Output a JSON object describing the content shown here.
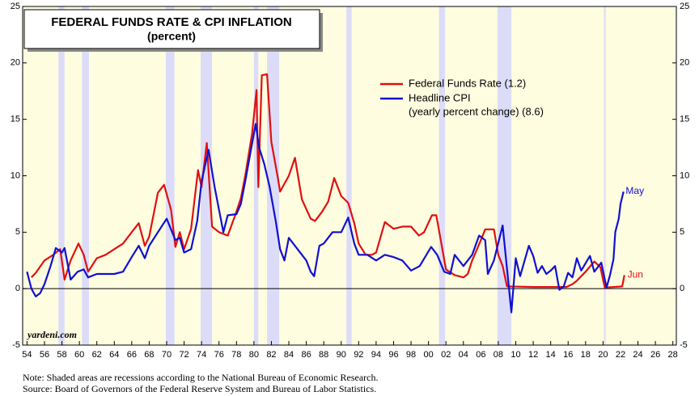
{
  "chart_data": {
    "type": "line",
    "title": "FEDERAL FUNDS RATE & CPI INFLATION",
    "subtitle": "(percent)",
    "xlim": [
      1953.5,
      2028.4
    ],
    "xticks": [
      {
        "value": 1954,
        "label": "54"
      },
      {
        "value": 1956,
        "label": "56"
      },
      {
        "value": 1958,
        "label": "58"
      },
      {
        "value": 1960,
        "label": "60"
      },
      {
        "value": 1962,
        "label": "62"
      },
      {
        "value": 1964,
        "label": "64"
      },
      {
        "value": 1966,
        "label": "66"
      },
      {
        "value": 1968,
        "label": "68"
      },
      {
        "value": 1970,
        "label": "70"
      },
      {
        "value": 1972,
        "label": "72"
      },
      {
        "value": 1974,
        "label": "74"
      },
      {
        "value": 1976,
        "label": "76"
      },
      {
        "value": 1978,
        "label": "78"
      },
      {
        "value": 1980,
        "label": "80"
      },
      {
        "value": 1982,
        "label": "82"
      },
      {
        "value": 1984,
        "label": "84"
      },
      {
        "value": 1986,
        "label": "86"
      },
      {
        "value": 1988,
        "label": "88"
      },
      {
        "value": 1990,
        "label": "90"
      },
      {
        "value": 1992,
        "label": "92"
      },
      {
        "value": 1994,
        "label": "94"
      },
      {
        "value": 1996,
        "label": "96"
      },
      {
        "value": 1998,
        "label": "98"
      },
      {
        "value": 2000,
        "label": "00"
      },
      {
        "value": 2002,
        "label": "02"
      },
      {
        "value": 2004,
        "label": "04"
      },
      {
        "value": 2006,
        "label": "06"
      },
      {
        "value": 2008,
        "label": "08"
      },
      {
        "value": 2010,
        "label": "10"
      },
      {
        "value": 2012,
        "label": "12"
      },
      {
        "value": 2014,
        "label": "14"
      },
      {
        "value": 2016,
        "label": "16"
      },
      {
        "value": 2018,
        "label": "18"
      },
      {
        "value": 2020,
        "label": "20"
      },
      {
        "value": 2022,
        "label": "22"
      },
      {
        "value": 2024,
        "label": "24"
      },
      {
        "value": 2026,
        "label": "26"
      },
      {
        "value": 2028,
        "label": "28"
      }
    ],
    "ylim": [
      -5,
      25
    ],
    "yticks": [
      -5,
      0,
      5,
      10,
      15,
      20,
      25
    ],
    "y2lim": [
      -5,
      25
    ],
    "y2ticks": [
      -5,
      0,
      5,
      10,
      15,
      20,
      25
    ],
    "recessions": [
      [
        1957.6,
        1958.3
      ],
      [
        1960.3,
        1961.1
      ],
      [
        1969.9,
        1970.9
      ],
      [
        1973.9,
        1975.2
      ],
      [
        1980.0,
        1980.5
      ],
      [
        1981.5,
        1982.9
      ],
      [
        1990.6,
        1991.2
      ],
      [
        2001.2,
        2001.9
      ],
      [
        2007.9,
        2009.5
      ],
      [
        2020.1,
        2020.3
      ]
    ],
    "recession_color": "#dcdcf8",
    "background": "#fffde0",
    "series": [
      {
        "name": "Federal Funds Rate (1.2)",
        "color": "#e01010",
        "x": [
          1954.5,
          1955,
          1956,
          1957,
          1957.8,
          1958.3,
          1959,
          1959.9,
          1960.5,
          1961,
          1962,
          1963,
          1964,
          1965,
          1966,
          1966.8,
          1967.5,
          1968,
          1969,
          1969.7,
          1970.5,
          1971,
          1971.5,
          1972,
          1972.8,
          1973.6,
          1974,
          1974.6,
          1975.2,
          1976,
          1977,
          1977.9,
          1978.5,
          1979,
          1979.8,
          1980.3,
          1980.5,
          1980.9,
          1981.5,
          1982,
          1982.7,
          1983,
          1984,
          1984.7,
          1985.5,
          1986.5,
          1987,
          1987.8,
          1988.5,
          1989.2,
          1990,
          1990.8,
          1991.5,
          1992,
          1992.8,
          1993.5,
          1994,
          1995,
          1996,
          1997,
          1998,
          1998.9,
          1999.5,
          2000.4,
          2000.9,
          2001.5,
          2002,
          2003,
          2004,
          2004.5,
          2005,
          2006,
          2006.5,
          2007.5,
          2008,
          2008.5,
          2009,
          2012,
          2015.8,
          2016.5,
          2017,
          2018,
          2019,
          2019.7,
          2020.2,
          2022.2,
          2022.45
        ],
        "values": [
          1.0,
          1.4,
          2.5,
          3.0,
          3.5,
          0.8,
          2.5,
          4.0,
          3.0,
          1.5,
          2.7,
          3.0,
          3.5,
          4.0,
          5.0,
          5.8,
          3.8,
          4.6,
          8.5,
          9.2,
          7.0,
          3.7,
          5.0,
          3.5,
          5.3,
          10.5,
          9.0,
          12.9,
          5.5,
          5.0,
          4.7,
          6.6,
          8.0,
          10.0,
          13.8,
          17.6,
          9.0,
          18.9,
          19.0,
          13.0,
          10.0,
          8.6,
          10.0,
          11.6,
          7.9,
          6.2,
          6.0,
          6.8,
          7.7,
          9.8,
          8.2,
          7.6,
          5.8,
          4.0,
          3.0,
          3.0,
          3.2,
          5.9,
          5.3,
          5.5,
          5.5,
          4.7,
          5.0,
          6.5,
          6.5,
          3.9,
          1.7,
          1.2,
          1.0,
          1.3,
          2.5,
          4.3,
          5.25,
          5.25,
          3.0,
          2.0,
          0.2,
          0.15,
          0.15,
          0.4,
          0.7,
          1.5,
          2.4,
          1.9,
          0.1,
          0.2,
          1.2
        ]
      },
      {
        "name": "Headline CPI",
        "name_detail": "(yearly percent change) (8.6)",
        "color": "#1010d0",
        "x": [
          1954,
          1954.5,
          1955,
          1955.5,
          1956,
          1956.7,
          1957.3,
          1958,
          1958.3,
          1959,
          1959.8,
          1960.5,
          1961,
          1962,
          1963,
          1964,
          1965,
          1966,
          1966.8,
          1967.5,
          1968,
          1969,
          1970,
          1971,
          1971.5,
          1972,
          1972.8,
          1973.5,
          1974,
          1974.8,
          1975.5,
          1976.5,
          1977,
          1978,
          1978.5,
          1979,
          1980.2,
          1980.6,
          1981.2,
          1981.8,
          1982.5,
          1983,
          1983.5,
          1984,
          1985,
          1986,
          1986.5,
          1986.9,
          1987.5,
          1988,
          1989,
          1990,
          1990.8,
          1991.5,
          1992,
          1993,
          1994,
          1995,
          1996,
          1997,
          1998,
          1999,
          2000.3,
          2001,
          2001.8,
          2002.5,
          2003,
          2004,
          2005,
          2005.8,
          2006.5,
          2006.8,
          2007.5,
          2008.5,
          2009.5,
          2010,
          2010.5,
          2011.5,
          2012,
          2012.5,
          2013,
          2013.5,
          2014,
          2014.5,
          2015,
          2015.5,
          2016,
          2016.5,
          2017,
          2017.5,
          2018.5,
          2019,
          2019.8,
          2020.4,
          2020.8,
          2021.2,
          2021.4,
          2021.8,
          2022,
          2022.35
        ],
        "values": [
          1.5,
          0.0,
          -0.7,
          -0.4,
          0.4,
          2.0,
          3.6,
          3.2,
          3.6,
          0.8,
          1.5,
          1.7,
          1.0,
          1.3,
          1.3,
          1.3,
          1.5,
          2.8,
          3.8,
          2.7,
          3.8,
          5.0,
          6.2,
          4.3,
          4.5,
          3.2,
          3.5,
          6.0,
          9.5,
          12.3,
          9.0,
          5.0,
          6.5,
          6.6,
          7.5,
          9.5,
          14.6,
          12.5,
          11.0,
          9.0,
          6.0,
          3.5,
          2.5,
          4.5,
          3.5,
          2.5,
          1.5,
          1.1,
          3.8,
          4.0,
          5.0,
          5.0,
          6.3,
          4.0,
          3.0,
          3.0,
          2.5,
          3.0,
          2.8,
          2.5,
          1.6,
          2.0,
          3.7,
          3.0,
          1.5,
          1.3,
          3.0,
          2.0,
          3.0,
          4.7,
          4.3,
          1.3,
          2.5,
          5.6,
          -2.1,
          2.7,
          1.1,
          3.8,
          2.9,
          1.4,
          2.0,
          1.3,
          1.6,
          2.0,
          -0.1,
          0.2,
          1.4,
          1.0,
          2.7,
          1.6,
          2.9,
          1.5,
          2.3,
          0.1,
          1.2,
          2.6,
          5.0,
          6.2,
          7.5,
          8.6
        ]
      }
    ],
    "annotations": [
      {
        "text": "May",
        "x": 2022.6,
        "y": 8.6,
        "color": "#1010d0"
      },
      {
        "text": "Jun",
        "x": 2022.8,
        "y": 1.2,
        "color": "#e01010"
      }
    ],
    "source_mark": "yardeni.com",
    "notes": [
      "Note: Shaded areas are recessions according to the National Bureau of Economic Research.",
      "Source: Board of Governors of the Federal Reserve System and Bureau of Labor Statistics."
    ]
  }
}
